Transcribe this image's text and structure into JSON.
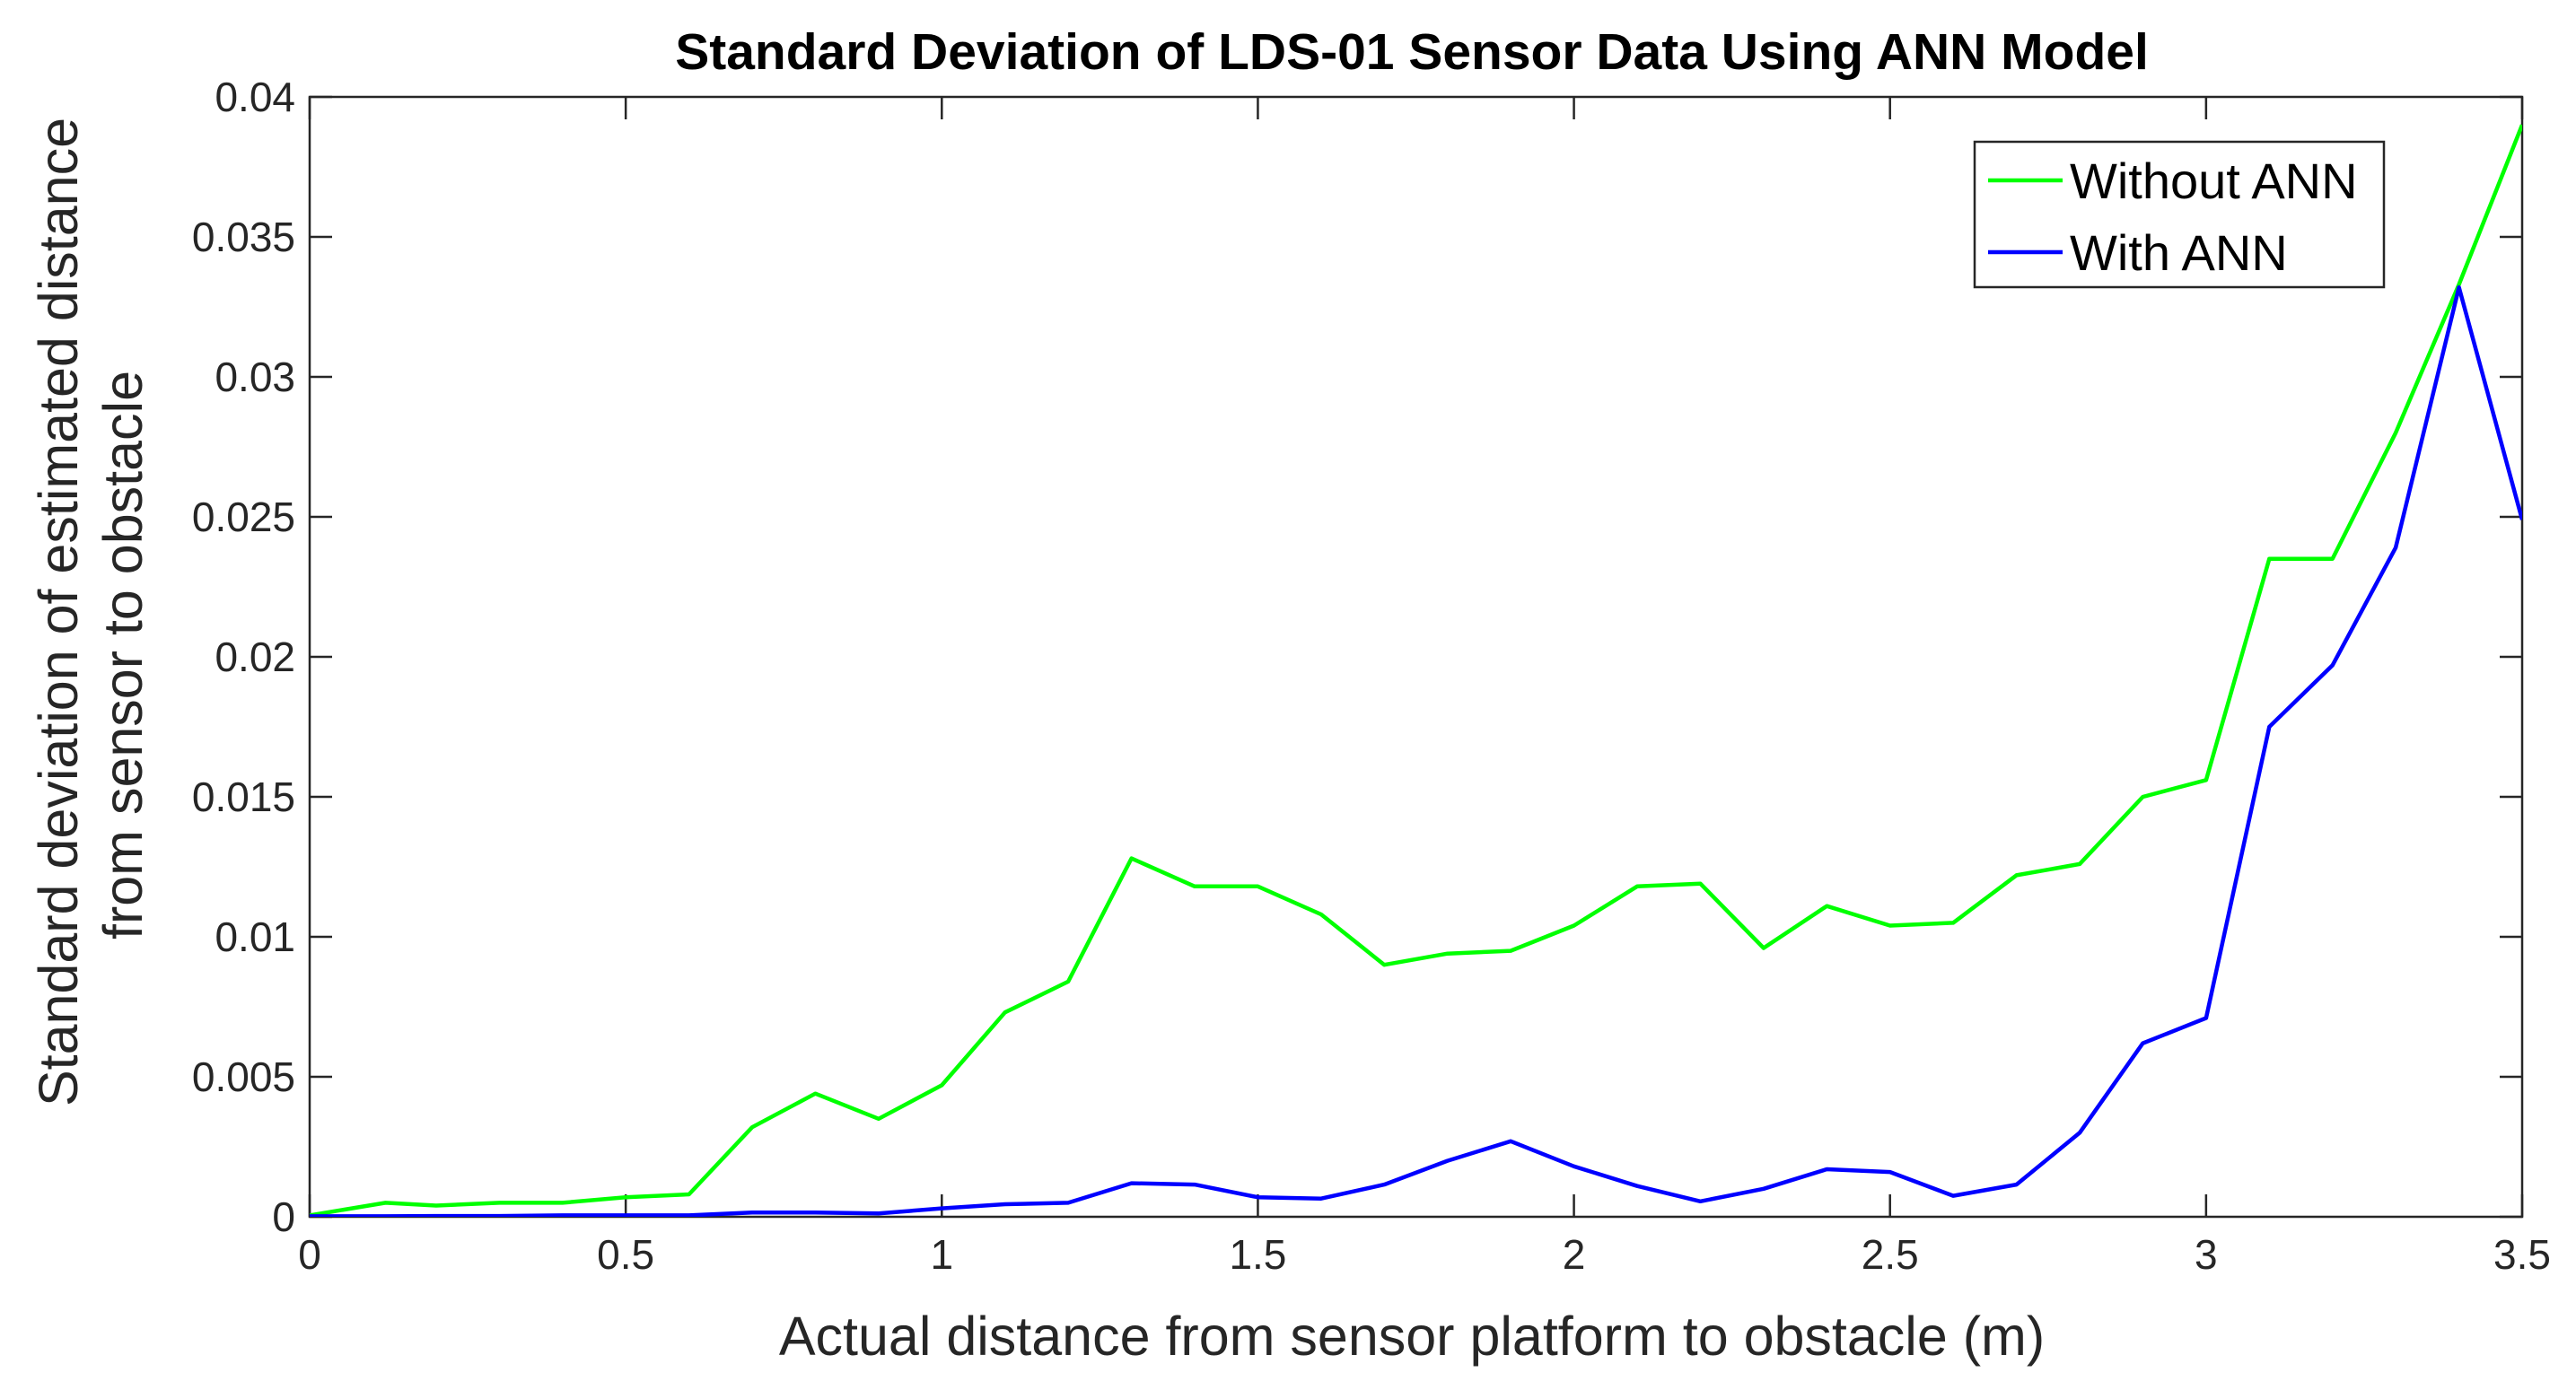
{
  "chart_data": {
    "type": "line",
    "title": "Standard Deviation of LDS-01 Sensor Data Using ANN Model",
    "xlabel": "Actual distance from sensor platform to obstacle (m)",
    "ylabel_lines": [
      "Standard deviation of estimated distance",
      "from sensor to obstacle"
    ],
    "xlim": [
      0,
      3.5
    ],
    "ylim": [
      0,
      0.04
    ],
    "xticks": [
      0,
      0.5,
      1,
      1.5,
      2,
      2.5,
      3,
      3.5
    ],
    "xtick_labels": [
      "0",
      "0.5",
      "1",
      "1.5",
      "2",
      "2.5",
      "3",
      "3.5"
    ],
    "yticks": [
      0,
      0.005,
      0.01,
      0.015,
      0.02,
      0.025,
      0.03,
      0.035,
      0.04
    ],
    "ytick_labels": [
      "0",
      "0.005",
      "0.01",
      "0.015",
      "0.02",
      "0.025",
      "0.03",
      "0.035",
      "0.04"
    ],
    "grid": false,
    "legend_position": "top-right",
    "x": [
      0,
      0.12,
      0.2,
      0.3,
      0.4,
      0.5,
      0.6,
      0.7,
      0.8,
      0.9,
      1.0,
      1.1,
      1.2,
      1.3,
      1.4,
      1.5,
      1.6,
      1.7,
      1.8,
      1.9,
      2.0,
      2.1,
      2.2,
      2.3,
      2.4,
      2.5,
      2.6,
      2.7,
      2.8,
      2.9,
      3.0,
      3.1,
      3.2,
      3.3,
      3.4,
      3.5
    ],
    "series": [
      {
        "name": "Without ANN",
        "color": "#00ff00",
        "values": [
          5e-05,
          0.0005,
          0.0004,
          0.0005,
          0.0005,
          0.0007,
          0.0008,
          0.0032,
          0.0044,
          0.0035,
          0.0047,
          0.0073,
          0.0084,
          0.0128,
          0.0118,
          0.0118,
          0.0108,
          0.009,
          0.0094,
          0.0095,
          0.0104,
          0.0118,
          0.0119,
          0.0096,
          0.0111,
          0.0104,
          0.0105,
          0.0122,
          0.0126,
          0.015,
          0.0156,
          0.0235,
          0.0235,
          0.028,
          0.0333,
          0.039
        ]
      },
      {
        "name": "With ANN",
        "color": "#0000ff",
        "values": [
          2e-05,
          2e-05,
          3e-05,
          3e-05,
          5e-05,
          5e-05,
          5e-05,
          0.00015,
          0.00015,
          0.00012,
          0.0003,
          0.00045,
          0.0005,
          0.0012,
          0.00115,
          0.0007,
          0.00065,
          0.00115,
          0.002,
          0.0027,
          0.0018,
          0.0011,
          0.00055,
          0.001,
          0.0017,
          0.0016,
          0.00075,
          0.00115,
          0.003,
          0.0062,
          0.0071,
          0.0175,
          0.0197,
          0.0239,
          0.0332,
          0.0249
        ]
      }
    ]
  }
}
